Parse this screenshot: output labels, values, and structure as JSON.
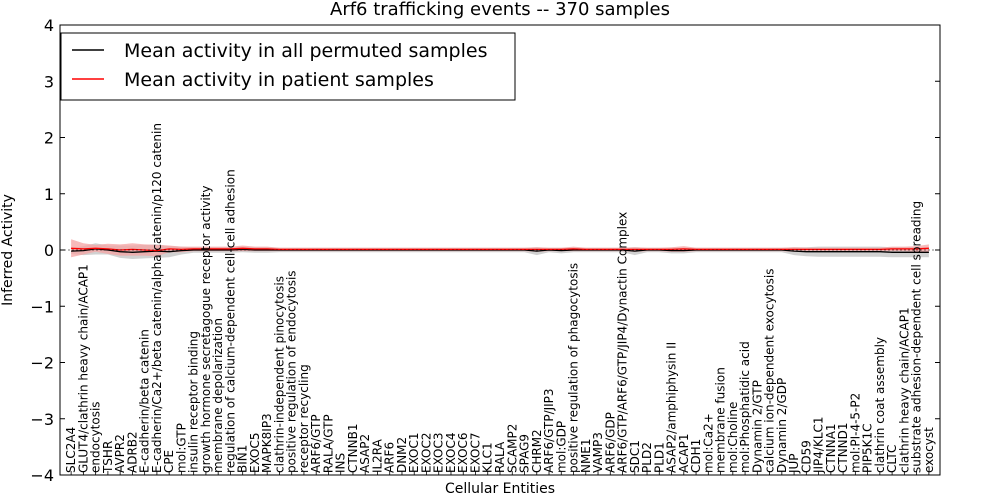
{
  "chart_data": {
    "type": "line",
    "title": "Arf6 trafficking events -- 370 samples",
    "xlabel": "Cellular Entities",
    "ylabel": "Inferred Activity",
    "ylim": [
      -4,
      4
    ],
    "yticks": [
      -4,
      -3,
      -2,
      -1,
      0,
      1,
      2,
      3,
      4
    ],
    "grid": false,
    "legend_position": "top-left",
    "categories": [
      "SLC2A4",
      "GLUT4/clathrin heavy chain/ACAP1",
      "endocytosis",
      "TSHR",
      "AVPR2",
      "ADRB2",
      "E-cadherin/beta catenin",
      "E-cadherin/Ca2+/beta catenin/alpha catenin/p120 catenin",
      "CPE",
      "mol:GTP",
      "insulin receptor binding",
      "growth hormone secretagogue receptor activity",
      "membrane depolarization",
      "regulation of calcium-dependent cell-cell adhesion",
      "BIN1",
      "EXOC5",
      "MAPK8IP3",
      "clathrin-independent pinocytosis",
      "positive regulation of endocytosis",
      "receptor recycling",
      "ARF6/GTP",
      "RALA/GTP",
      "INS",
      "CTNNB1",
      "ASAP2",
      "IL2RA",
      "ARF6",
      "DNM2",
      "EXOC1",
      "EXOC2",
      "EXOC3",
      "EXOC4",
      "EXOC6",
      "EXOC7",
      "KLC1",
      "RALA",
      "SCAMP2",
      "SPAG9",
      "CHRM2",
      "ARF6/GTP/JIP3",
      "mol:GDP",
      "positive regulation of phagocytosis",
      "NME1",
      "VAMP3",
      "ARF6/GDP",
      "ARF6/GTP/ARF6/GTP/JIP4/Dynactin Complex",
      "SDC1",
      "PLD2",
      "PLD1",
      "ASAP2/amphiphysin II",
      "ACAP1",
      "CDH1",
      "mol:Ca2+",
      "membrane fusion",
      "mol:Choline",
      "mol:Phosphatidic acid",
      "Dynamin 2/GTP",
      "calcium ion-dependent exocytosis",
      "Dynamin 2/GDP",
      "JUP",
      "CD59",
      "JIP4/KLC1",
      "CTNNA1",
      "CTNND1",
      "mol:PI-4-5-P2",
      "PIP5K1C",
      "clathrin coat assembly",
      "CLTC",
      "clathrin heavy chain/ACAP1",
      "substrate adhesion-dependent cell spreading",
      "exocyst"
    ],
    "series": [
      {
        "name": "Mean activity in all permuted samples",
        "color": "#000000",
        "values": [
          -0.02,
          -0.01,
          0.02,
          0.0,
          -0.03,
          -0.04,
          -0.03,
          -0.02,
          -0.03,
          -0.01,
          0.0,
          0.0,
          0.0,
          0.0,
          0.01,
          0.0,
          0.0,
          0.0,
          0.0,
          0.0,
          0.0,
          0.0,
          0.0,
          0.0,
          0.0,
          0.0,
          0.0,
          0.0,
          0.0,
          0.0,
          0.0,
          0.0,
          0.0,
          0.0,
          0.0,
          0.0,
          0.0,
          0.0,
          -0.02,
          0.0,
          -0.01,
          0.0,
          0.0,
          0.0,
          0.0,
          0.0,
          -0.02,
          0.0,
          0.0,
          -0.01,
          -0.01,
          0.0,
          0.0,
          0.0,
          0.0,
          0.0,
          0.0,
          0.0,
          0.0,
          -0.02,
          -0.03,
          -0.03,
          -0.03,
          -0.03,
          -0.03,
          -0.03,
          -0.03,
          -0.04,
          -0.04,
          -0.04,
          -0.04
        ],
        "band": [
          0.05,
          0.08,
          0.1,
          0.08,
          0.11,
          0.12,
          0.12,
          0.12,
          0.1,
          0.07,
          0.05,
          0.05,
          0.05,
          0.05,
          0.05,
          0.05,
          0.05,
          0.04,
          0.04,
          0.04,
          0.04,
          0.04,
          0.04,
          0.04,
          0.04,
          0.04,
          0.04,
          0.04,
          0.04,
          0.04,
          0.04,
          0.04,
          0.04,
          0.04,
          0.04,
          0.04,
          0.04,
          0.04,
          0.07,
          0.04,
          0.05,
          0.04,
          0.04,
          0.04,
          0.04,
          0.04,
          0.07,
          0.04,
          0.04,
          0.05,
          0.05,
          0.04,
          0.04,
          0.04,
          0.04,
          0.04,
          0.04,
          0.04,
          0.04,
          0.07,
          0.08,
          0.09,
          0.09,
          0.09,
          0.09,
          0.09,
          0.09,
          0.09,
          0.09,
          0.09,
          0.09
        ],
        "band_color": "#cccccc"
      },
      {
        "name": "Mean activity in patient samples",
        "color": "#ff0000",
        "values": [
          0.03,
          0.02,
          0.03,
          0.02,
          0.0,
          0.01,
          0.0,
          -0.01,
          0.02,
          0.01,
          0.02,
          0.02,
          0.02,
          0.02,
          0.03,
          0.02,
          0.02,
          0.01,
          0.01,
          0.01,
          0.01,
          0.01,
          0.01,
          0.01,
          0.01,
          0.01,
          0.01,
          0.01,
          0.01,
          0.01,
          0.01,
          0.01,
          0.01,
          0.01,
          0.01,
          0.01,
          0.01,
          0.01,
          0.01,
          0.01,
          0.01,
          0.02,
          0.01,
          0.01,
          0.01,
          0.01,
          0.01,
          0.01,
          0.01,
          0.01,
          0.02,
          0.01,
          0.01,
          0.01,
          0.01,
          0.01,
          0.01,
          0.01,
          0.01,
          0.01,
          0.01,
          0.01,
          0.01,
          0.01,
          0.01,
          0.01,
          0.01,
          0.02,
          0.02,
          0.02,
          0.03
        ],
        "band": [
          0.16,
          0.1,
          0.06,
          0.09,
          0.1,
          0.11,
          0.1,
          0.1,
          0.06,
          0.05,
          0.04,
          0.04,
          0.04,
          0.04,
          0.05,
          0.04,
          0.04,
          0.03,
          0.03,
          0.03,
          0.03,
          0.03,
          0.03,
          0.03,
          0.03,
          0.03,
          0.03,
          0.03,
          0.03,
          0.03,
          0.03,
          0.03,
          0.03,
          0.03,
          0.03,
          0.03,
          0.03,
          0.03,
          0.04,
          0.03,
          0.03,
          0.04,
          0.03,
          0.03,
          0.03,
          0.03,
          0.04,
          0.03,
          0.03,
          0.04,
          0.05,
          0.03,
          0.03,
          0.03,
          0.03,
          0.03,
          0.03,
          0.03,
          0.03,
          0.04,
          0.03,
          0.03,
          0.03,
          0.03,
          0.03,
          0.03,
          0.03,
          0.04,
          0.04,
          0.05,
          0.07
        ],
        "band_color": "#f4a3a3"
      }
    ]
  }
}
